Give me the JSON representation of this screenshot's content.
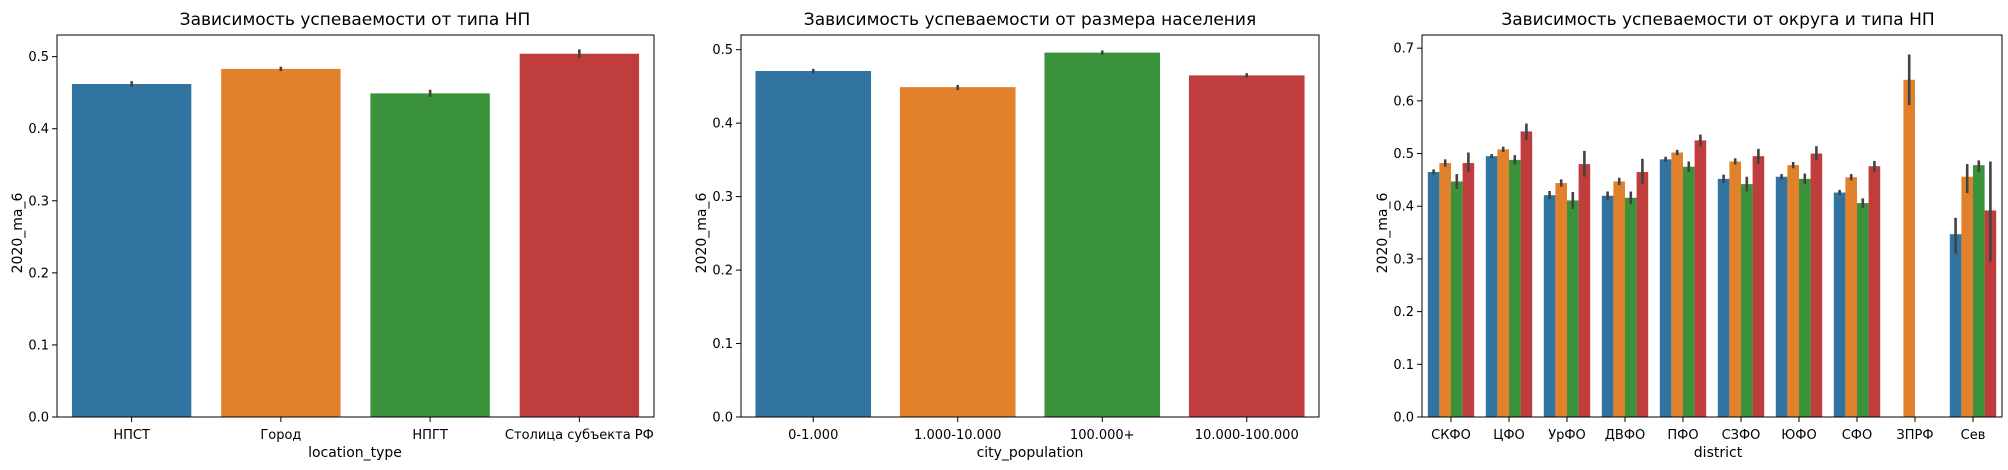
{
  "chart_data": [
    {
      "type": "bar",
      "title": "Зависимость успеваемости от типа НП",
      "xlabel": "location_type",
      "ylabel": "2020_ma_6",
      "ylim": [
        0,
        0.53
      ],
      "yticks": [
        0.0,
        0.1,
        0.2,
        0.3,
        0.4,
        0.5
      ],
      "ytick_labels": [
        "0.0",
        "0.1",
        "0.2",
        "0.3",
        "0.4",
        "0.5"
      ],
      "grid": false,
      "categories": [
        "НПСТ",
        "Город",
        "НПГТ",
        "Столица субъекта РФ"
      ],
      "values": [
        0.462,
        0.483,
        0.449,
        0.504
      ],
      "err_low": [
        0.458,
        0.48,
        0.444,
        0.498
      ],
      "err_high": [
        0.466,
        0.486,
        0.454,
        0.51
      ],
      "colors": [
        "#3274a1",
        "#e1812c",
        "#3a923a",
        "#c03d3e"
      ]
    },
    {
      "type": "bar",
      "title": "Зависимость успеваемости от размера населения",
      "xlabel": "city_population",
      "ylabel": "2020_ma_6",
      "ylim": [
        0,
        0.52
      ],
      "yticks": [
        0.0,
        0.1,
        0.2,
        0.3,
        0.4,
        0.5
      ],
      "ytick_labels": [
        "0.0",
        "0.1",
        "0.2",
        "0.3",
        "0.4",
        "0.5"
      ],
      "grid": false,
      "categories": [
        "0-1.000",
        "1.000-10.000",
        "100.000+",
        "10.000-100.000"
      ],
      "values": [
        0.471,
        0.449,
        0.496,
        0.465
      ],
      "err_low": [
        0.468,
        0.445,
        0.493,
        0.462
      ],
      "err_high": [
        0.474,
        0.452,
        0.499,
        0.468
      ],
      "colors": [
        "#3274a1",
        "#e1812c",
        "#3a923a",
        "#c03d3e"
      ]
    },
    {
      "type": "bar",
      "title": "Зависимость успеваемости от округа и типа НП",
      "xlabel": "district",
      "ylabel": "2020_ma_6",
      "ylim": [
        0,
        0.725
      ],
      "yticks": [
        0.0,
        0.1,
        0.2,
        0.3,
        0.4,
        0.5,
        0.6,
        0.7
      ],
      "ytick_labels": [
        "0.0",
        "0.1",
        "0.2",
        "0.3",
        "0.4",
        "0.5",
        "0.6",
        "0.7"
      ],
      "grid": false,
      "categories": [
        "СКФО",
        "ЦФО",
        "УрФО",
        "ДВФО",
        "ПФО",
        "СЗФО",
        "ЮФО",
        "СФО",
        "ЗПРФ",
        "Сев"
      ],
      "colors": [
        "#3274a1",
        "#e1812c",
        "#3a923a",
        "#c03d3e"
      ],
      "series": [
        {
          "values": [
            0.465,
            0.495,
            0.421,
            0.42,
            0.489,
            0.452,
            0.456,
            0.426,
            null,
            0.347
          ],
          "err_low": [
            0.46,
            0.491,
            0.413,
            0.412,
            0.484,
            0.444,
            0.451,
            0.421,
            null,
            0.31
          ],
          "err_high": [
            0.47,
            0.499,
            0.429,
            0.428,
            0.494,
            0.46,
            0.461,
            0.431,
            null,
            0.378
          ]
        },
        {
          "values": [
            0.482,
            0.508,
            0.444,
            0.447,
            0.502,
            0.485,
            0.478,
            0.455,
            0.64,
            0.456
          ],
          "err_low": [
            0.475,
            0.503,
            0.437,
            0.44,
            0.497,
            0.479,
            0.472,
            0.449,
            0.592,
            0.425
          ],
          "err_high": [
            0.489,
            0.513,
            0.451,
            0.454,
            0.507,
            0.491,
            0.484,
            0.461,
            0.688,
            0.48
          ]
        },
        {
          "values": [
            0.447,
            0.488,
            0.411,
            0.416,
            0.475,
            0.442,
            0.452,
            0.406,
            null,
            0.478
          ],
          "err_low": [
            0.433,
            0.479,
            0.395,
            0.404,
            0.465,
            0.428,
            0.442,
            0.397,
            null,
            0.465
          ],
          "err_high": [
            0.461,
            0.497,
            0.427,
            0.428,
            0.485,
            0.456,
            0.462,
            0.415,
            null,
            0.487
          ]
        },
        {
          "values": [
            0.482,
            0.542,
            0.48,
            0.465,
            0.525,
            0.495,
            0.5,
            0.476,
            null,
            0.392
          ],
          "err_low": [
            0.466,
            0.526,
            0.456,
            0.443,
            0.514,
            0.481,
            0.487,
            0.466,
            null,
            0.295
          ],
          "err_high": [
            0.502,
            0.557,
            0.505,
            0.49,
            0.536,
            0.509,
            0.514,
            0.486,
            null,
            0.485
          ]
        }
      ]
    }
  ]
}
